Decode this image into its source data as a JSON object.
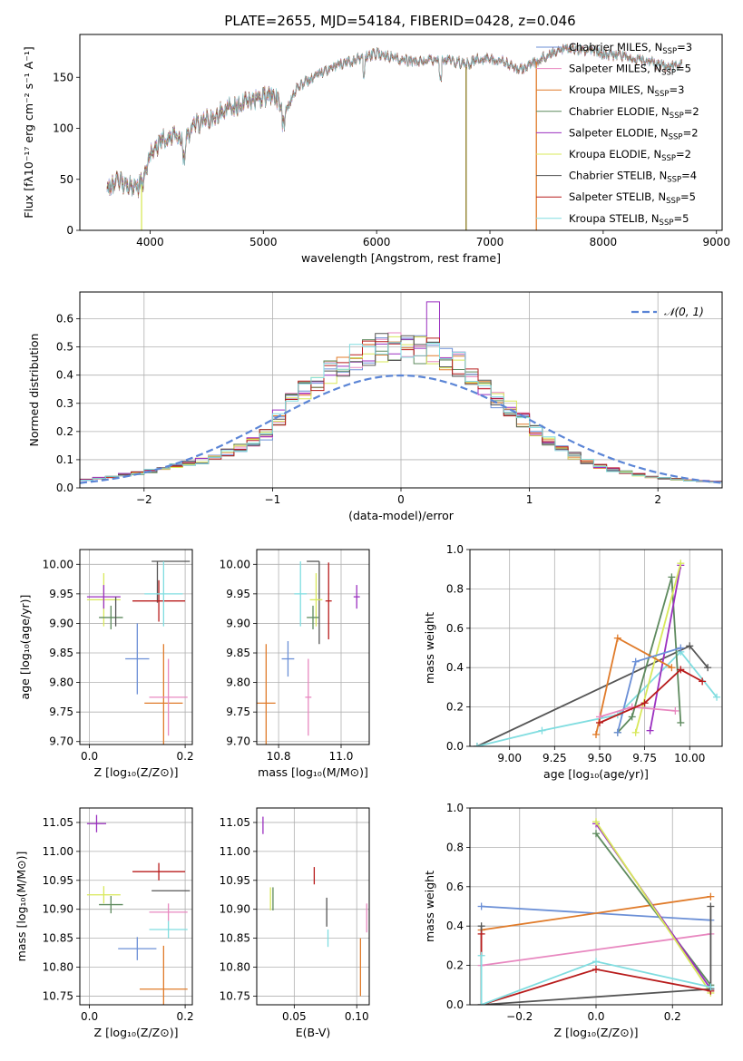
{
  "figure_title": "PLATE=2655, MJD=54184, FIBERID=0428, z=0.046",
  "chart_data": [
    {
      "id": "spectrum",
      "type": "line",
      "title": "PLATE=2655, MJD=54184, FIBERID=0428, z=0.046",
      "xlabel": "wavelength [Angstrom, rest frame]",
      "ylabel": "Flux [fλ10⁻¹⁷ erg cm⁻² s⁻¹ A⁻¹]",
      "xlim": [
        3380,
        9050
      ],
      "ylim": [
        0,
        192
      ],
      "xticks": [
        4000,
        5000,
        6000,
        7000,
        8000,
        9000
      ],
      "yticks": [
        0,
        50,
        100,
        150
      ],
      "grid": false,
      "legend_position": "right",
      "series": [
        {
          "name": "Chabrier MILES, N_SSP=3",
          "label_main": "Chabrier MILES, N",
          "label_sub": "SSP",
          "label_tail": "=3",
          "color": "#6b8fd6"
        },
        {
          "name": "Salpeter MILES, N_SSP=5",
          "label_main": "Salpeter MILES, N",
          "label_sub": "SSP",
          "label_tail": "=5",
          "color": "#e888c0"
        },
        {
          "name": "Kroupa MILES, N_SSP=3",
          "label_main": "Kroupa MILES, N",
          "label_sub": "SSP",
          "label_tail": "=3",
          "color": "#e07b2a"
        },
        {
          "name": "Chabrier ELODIE, N_SSP=2",
          "label_main": "Chabrier ELODIE, N",
          "label_sub": "SSP",
          "label_tail": "=2",
          "color": "#5e8a5e"
        },
        {
          "name": "Salpeter ELODIE, N_SSP=2",
          "label_main": "Salpeter ELODIE, N",
          "label_sub": "SSP",
          "label_tail": "=2",
          "color": "#9b30c0"
        },
        {
          "name": "Kroupa ELODIE, N_SSP=2",
          "label_main": "Kroupa ELODIE, N",
          "label_sub": "SSP",
          "label_tail": "=2",
          "color": "#d8e85a"
        },
        {
          "name": "Chabrier STELIB, N_SSP=4",
          "label_main": "Chabrier STELIB, N",
          "label_sub": "SSP",
          "label_tail": "=4",
          "color": "#555555"
        },
        {
          "name": "Salpeter STELIB, N_SSP=5",
          "label_main": "Salpeter STELIB, N",
          "label_sub": "SSP",
          "label_tail": "=5",
          "color": "#b81c1c"
        },
        {
          "name": "Kroupa STELIB, N_SSP=5",
          "label_main": "Kroupa STELIB, N",
          "label_sub": "SSP",
          "label_tail": "=5",
          "color": "#80dde0"
        }
      ],
      "continuum": {
        "x": [
          3620,
          3700,
          3800,
          3900,
          3950,
          4000,
          4100,
          4200,
          4300,
          4400,
          4500,
          4700,
          4900,
          5100,
          5200,
          5300,
          5500,
          5700,
          5900,
          6000,
          6200,
          6400,
          6600,
          6800,
          6900,
          7100,
          7200,
          7300,
          7400,
          7600,
          7800,
          8000,
          8200,
          8400,
          8600,
          8700
        ],
        "y": [
          42,
          48,
          45,
          43,
          50,
          75,
          88,
          92,
          87,
          103,
          108,
          120,
          128,
          132,
          118,
          140,
          155,
          163,
          170,
          173,
          168,
          165,
          168,
          163,
          168,
          167,
          160,
          158,
          165,
          176,
          178,
          173,
          170,
          165,
          160,
          163
        ]
      },
      "artifacts": [
        {
          "x": 3925,
          "y_min": 0,
          "y_max": 45,
          "color": "#d8e85a"
        },
        {
          "x": 6790,
          "y_min": 0,
          "y_max": 160,
          "color": "#8a7a20"
        },
        {
          "x": 7410,
          "y_min": 0,
          "y_max": 165,
          "color": "#e07b2a"
        }
      ]
    },
    {
      "id": "residuals",
      "type": "histogram",
      "xlabel": "(data-model)/error",
      "ylabel": "Normed distribution",
      "xlim": [
        -2.5,
        2.5
      ],
      "ylim": [
        0,
        0.695
      ],
      "xticks": [
        -2,
        -1,
        0,
        1,
        2
      ],
      "yticks": [
        0.0,
        0.1,
        0.2,
        0.3,
        0.4,
        0.5,
        0.6
      ],
      "grid": true,
      "legend_position": "top-right",
      "reference": {
        "name": "𝒩(0, 1)",
        "mean": 0,
        "sigma": 1,
        "color": "#5b85d6"
      },
      "bin_width": 0.1,
      "envelope": {
        "x": [
          -2.5,
          -2.0,
          -1.5,
          -1.2,
          -1.0,
          -0.9,
          -0.7,
          -0.5,
          -0.3,
          -0.1,
          0.1,
          0.3,
          0.5,
          0.6,
          0.8,
          1.0,
          1.2,
          1.5,
          1.8,
          2.0,
          2.5
        ],
        "y": [
          0.025,
          0.055,
          0.1,
          0.15,
          0.2,
          0.3,
          0.37,
          0.43,
          0.48,
          0.5,
          0.5,
          0.48,
          0.42,
          0.37,
          0.3,
          0.22,
          0.15,
          0.08,
          0.05,
          0.035,
          0.02
        ]
      },
      "series_colors": [
        "#6b8fd6",
        "#e888c0",
        "#e07b2a",
        "#5e8a5e",
        "#9b30c0",
        "#d8e85a",
        "#555555",
        "#b81c1c",
        "#80dde0"
      ],
      "peak": {
        "x": 0.25,
        "y": 0.66,
        "color": "#9b30c0"
      }
    },
    {
      "id": "age-vs-Z",
      "type": "errorbar",
      "xlabel": "Z [log₁₀(Z/Z⊙)]",
      "ylabel": "age  [log₁₀(age/yr)]",
      "xlim": [
        -0.02,
        0.215
      ],
      "ylim": [
        9.695,
        10.025
      ],
      "xticks": [
        0.0,
        0.2
      ],
      "yticks": [
        9.7,
        9.75,
        9.8,
        9.85,
        9.9,
        9.95,
        10.0
      ],
      "grid": true,
      "points": [
        {
          "color": "#d8e85a",
          "x": 0.03,
          "y": 9.94,
          "xerr": 0.035,
          "yerr": 0.045
        },
        {
          "color": "#9b30c0",
          "x": 0.03,
          "y": 9.945,
          "xerr": 0.035,
          "yerr": 0.02
        },
        {
          "color": "#5e8a5e",
          "x": 0.045,
          "y": 9.91,
          "xerr": 0.025,
          "yerr": 0.02
        },
        {
          "color": "#555555",
          "x": 0.055,
          "y": 9.92,
          "xerr": 0.0,
          "yerr": 0.025
        },
        {
          "color": "#555555",
          "x": 0.17,
          "y": 10.005,
          "xerr": 0.04,
          "yerr": 0.0
        },
        {
          "color": "#555555",
          "x": 0.142,
          "y": 9.97,
          "xerr": 0.0,
          "yerr": 0.035
        },
        {
          "color": "#b81c1c",
          "x": 0.145,
          "y": 9.938,
          "xerr": 0.055,
          "yerr": 0.035
        },
        {
          "color": "#80dde0",
          "x": 0.155,
          "y": 9.95,
          "xerr": 0.04,
          "yerr": 0.055
        },
        {
          "color": "#6b8fd6",
          "x": 0.1,
          "y": 9.84,
          "xerr": 0.025,
          "yerr": 0.06
        },
        {
          "color": "#e07b2a",
          "x": 0.155,
          "y": 9.765,
          "xerr": 0.04,
          "yerr": 0.1
        },
        {
          "color": "#e888c0",
          "x": 0.165,
          "y": 9.775,
          "xerr": 0.04,
          "yerr": 0.065
        }
      ]
    },
    {
      "id": "age-vs-mass",
      "type": "errorbar",
      "xlabel": "mass [log₁₀(M/M⊙)]",
      "ylabel": "",
      "xlim": [
        10.73,
        11.09
      ],
      "ylim": [
        9.695,
        10.025
      ],
      "xticks": [
        10.8,
        11.0
      ],
      "yticks": [
        9.7,
        9.75,
        9.8,
        9.85,
        9.9,
        9.95,
        10.0
      ],
      "grid": true,
      "points": [
        {
          "color": "#555555",
          "x": 10.93,
          "y": 10.005,
          "xerr": 0.0,
          "yerr": 0.0,
          "hline_to": 10.89
        },
        {
          "color": "#555555",
          "x": 10.93,
          "y": 9.935,
          "xerr": 0.0,
          "yerr": 0.07
        },
        {
          "color": "#80dde0",
          "x": 10.87,
          "y": 9.95,
          "xerr": 0.02,
          "yerr": 0.055
        },
        {
          "color": "#d8e85a",
          "x": 10.92,
          "y": 9.94,
          "xerr": 0.02,
          "yerr": 0.045
        },
        {
          "color": "#5e8a5e",
          "x": 10.91,
          "y": 9.91,
          "xerr": 0.02,
          "yerr": 0.02
        },
        {
          "color": "#b81c1c",
          "x": 10.96,
          "y": 9.938,
          "xerr": 0.01,
          "yerr": 0.065
        },
        {
          "color": "#9b30c0",
          "x": 11.05,
          "y": 9.945,
          "xerr": 0.01,
          "yerr": 0.02
        },
        {
          "color": "#6b8fd6",
          "x": 10.83,
          "y": 9.84,
          "xerr": 0.02,
          "yerr": 0.03
        },
        {
          "color": "#e07b2a",
          "x": 10.76,
          "y": 9.765,
          "xerr": 0.03,
          "yerr": 0.1
        },
        {
          "color": "#e888c0",
          "x": 10.895,
          "y": 9.775,
          "xerr": 0.01,
          "yerr": 0.065
        }
      ]
    },
    {
      "id": "massweight-vs-age",
      "type": "line",
      "xlabel": "age  [log₁₀(age/yr)]",
      "ylabel": "mass weight",
      "xlim": [
        8.78,
        10.18
      ],
      "ylim": [
        0.0,
        1.0
      ],
      "xticks": [
        9.0,
        9.25,
        9.5,
        9.75,
        10.0
      ],
      "yticks": [
        0.0,
        0.2,
        0.4,
        0.6,
        0.8,
        1.0
      ],
      "grid": true,
      "series": [
        {
          "color": "#555555",
          "x": [
            8.82,
            10.0,
            10.1
          ],
          "y": [
            0.0,
            0.51,
            0.4
          ]
        },
        {
          "color": "#80dde0",
          "x": [
            8.82,
            9.18,
            9.6,
            9.95,
            10.15
          ],
          "y": [
            0.0,
            0.08,
            0.16,
            0.48,
            0.25
          ]
        },
        {
          "color": "#5e8a5e",
          "x": [
            9.6,
            9.68,
            9.9,
            9.95
          ],
          "y": [
            0.07,
            0.15,
            0.86,
            0.12
          ]
        },
        {
          "color": "#9b30c0",
          "x": [
            9.78,
            9.95
          ],
          "y": [
            0.08,
            0.92
          ]
        },
        {
          "color": "#d8e85a",
          "x": [
            9.7,
            9.95
          ],
          "y": [
            0.07,
            0.93
          ]
        },
        {
          "color": "#e07b2a",
          "x": [
            9.48,
            9.6,
            9.9
          ],
          "y": [
            0.06,
            0.55,
            0.4
          ]
        },
        {
          "color": "#6b8fd6",
          "x": [
            9.6,
            9.7,
            9.95
          ],
          "y": [
            0.07,
            0.43,
            0.5
          ]
        },
        {
          "color": "#e888c0",
          "x": [
            9.5,
            9.68,
            9.92
          ],
          "y": [
            0.15,
            0.2,
            0.18
          ]
        },
        {
          "color": "#b81c1c",
          "x": [
            9.5,
            9.75,
            9.95,
            10.07
          ],
          "y": [
            0.12,
            0.22,
            0.39,
            0.33
          ]
        }
      ]
    },
    {
      "id": "mass-vs-Z",
      "type": "errorbar",
      "xlabel": "Z [log₁₀(Z/Z⊙)]",
      "ylabel": "mass [log₁₀(M/M⊙)]",
      "xlim": [
        -0.02,
        0.215
      ],
      "ylim": [
        10.735,
        11.075
      ],
      "xticks": [
        0.0,
        0.2
      ],
      "yticks": [
        10.75,
        10.8,
        10.85,
        10.9,
        10.95,
        11.0,
        11.05
      ],
      "grid": true,
      "points": [
        {
          "color": "#9b30c0",
          "x": 0.015,
          "y": 11.048,
          "xerr": 0.02,
          "yerr": 0.015
        },
        {
          "color": "#b81c1c",
          "x": 0.145,
          "y": 10.965,
          "xerr": 0.055,
          "yerr": 0.015
        },
        {
          "color": "#d8e85a",
          "x": 0.03,
          "y": 10.925,
          "xerr": 0.035,
          "yerr": 0.015
        },
        {
          "color": "#555555",
          "x": 0.17,
          "y": 10.932,
          "xerr": 0.04,
          "yerr": 0.0
        },
        {
          "color": "#5e8a5e",
          "x": 0.045,
          "y": 10.908,
          "xerr": 0.025,
          "yerr": 0.015
        },
        {
          "color": "#e888c0",
          "x": 0.165,
          "y": 10.895,
          "xerr": 0.04,
          "yerr": 0.015
        },
        {
          "color": "#80dde0",
          "x": 0.165,
          "y": 10.865,
          "xerr": 0.04,
          "yerr": 0.015
        },
        {
          "color": "#6b8fd6",
          "x": 0.1,
          "y": 10.832,
          "xerr": 0.04,
          "yerr": 0.02
        },
        {
          "color": "#e07b2a",
          "x": 0.155,
          "y": 10.762,
          "xerr": 0.05,
          "yerr": 0.075
        }
      ]
    },
    {
      "id": "mass-vs-EBV",
      "type": "errorbar",
      "xlabel": "E(B-V)",
      "ylabel": "",
      "xlim": [
        0.02,
        0.11
      ],
      "ylim": [
        10.735,
        11.075
      ],
      "xticks": [
        0.05,
        0.1
      ],
      "yticks": [
        10.75,
        10.8,
        10.85,
        10.9,
        10.95,
        11.0,
        11.05
      ],
      "grid": true,
      "points": [
        {
          "color": "#9b30c0",
          "x": 0.025,
          "y": 11.045,
          "xerr": 0.0,
          "yerr": 0.015
        },
        {
          "color": "#b81c1c",
          "x": 0.066,
          "y": 10.958,
          "xerr": 0.0,
          "yerr": 0.015
        },
        {
          "color": "#d8e85a",
          "x": 0.031,
          "y": 10.918,
          "xerr": 0.0,
          "yerr": 0.02
        },
        {
          "color": "#5e8a5e",
          "x": 0.033,
          "y": 10.918,
          "xerr": 0.0,
          "yerr": 0.02
        },
        {
          "color": "#555555",
          "x": 0.076,
          "y": 10.895,
          "xerr": 0.0,
          "yerr": 0.025
        },
        {
          "color": "#80dde0",
          "x": 0.077,
          "y": 10.85,
          "xerr": 0.0,
          "yerr": 0.015
        },
        {
          "color": "#e888c0",
          "x": 0.108,
          "y": 10.885,
          "xerr": 0.0,
          "yerr": 0.025
        },
        {
          "color": "#e07b2a",
          "x": 0.103,
          "y": 10.8,
          "xerr": 0.0,
          "yerr": 0.05
        }
      ]
    },
    {
      "id": "massweight-vs-Z",
      "type": "line",
      "xlabel": "Z [log₁₀(Z/Z⊙)]",
      "ylabel": "mass weight",
      "xlim": [
        -0.33,
        0.33
      ],
      "ylim": [
        0.0,
        1.0
      ],
      "xticks": [
        -0.2,
        0.0,
        0.2
      ],
      "yticks": [
        0.0,
        0.2,
        0.4,
        0.6,
        0.8,
        1.0
      ],
      "grid": true,
      "series": [
        {
          "color": "#6b8fd6",
          "x": [
            -0.3,
            0.3
          ],
          "y": [
            0.5,
            0.43
          ]
        },
        {
          "color": "#e07b2a",
          "x": [
            -0.3,
            0.3
          ],
          "y": [
            0.38,
            0.55
          ]
        },
        {
          "color": "#e888c0",
          "x": [
            -0.3,
            0.3
          ],
          "y": [
            0.2,
            0.36
          ]
        },
        {
          "color": "#5e8a5e",
          "x": [
            0.0,
            0.3
          ],
          "y": [
            0.87,
            0.1
          ]
        },
        {
          "color": "#9b30c0",
          "x": [
            0.0,
            0.3
          ],
          "y": [
            0.92,
            0.08
          ]
        },
        {
          "color": "#d8e85a",
          "x": [
            0.0,
            0.3
          ],
          "y": [
            0.93,
            0.06
          ]
        },
        {
          "color": "#555555",
          "x": [
            -0.3,
            -0.3,
            0.3,
            0.3
          ],
          "y": [
            0.4,
            0.0,
            0.08,
            0.5
          ]
        },
        {
          "color": "#b81c1c",
          "x": [
            -0.3,
            -0.3,
            0.0,
            0.3
          ],
          "y": [
            0.36,
            0.0,
            0.18,
            0.07
          ]
        },
        {
          "color": "#80dde0",
          "x": [
            -0.3,
            -0.3,
            0.0,
            0.3
          ],
          "y": [
            0.25,
            0.0,
            0.22,
            0.09
          ]
        }
      ]
    }
  ]
}
